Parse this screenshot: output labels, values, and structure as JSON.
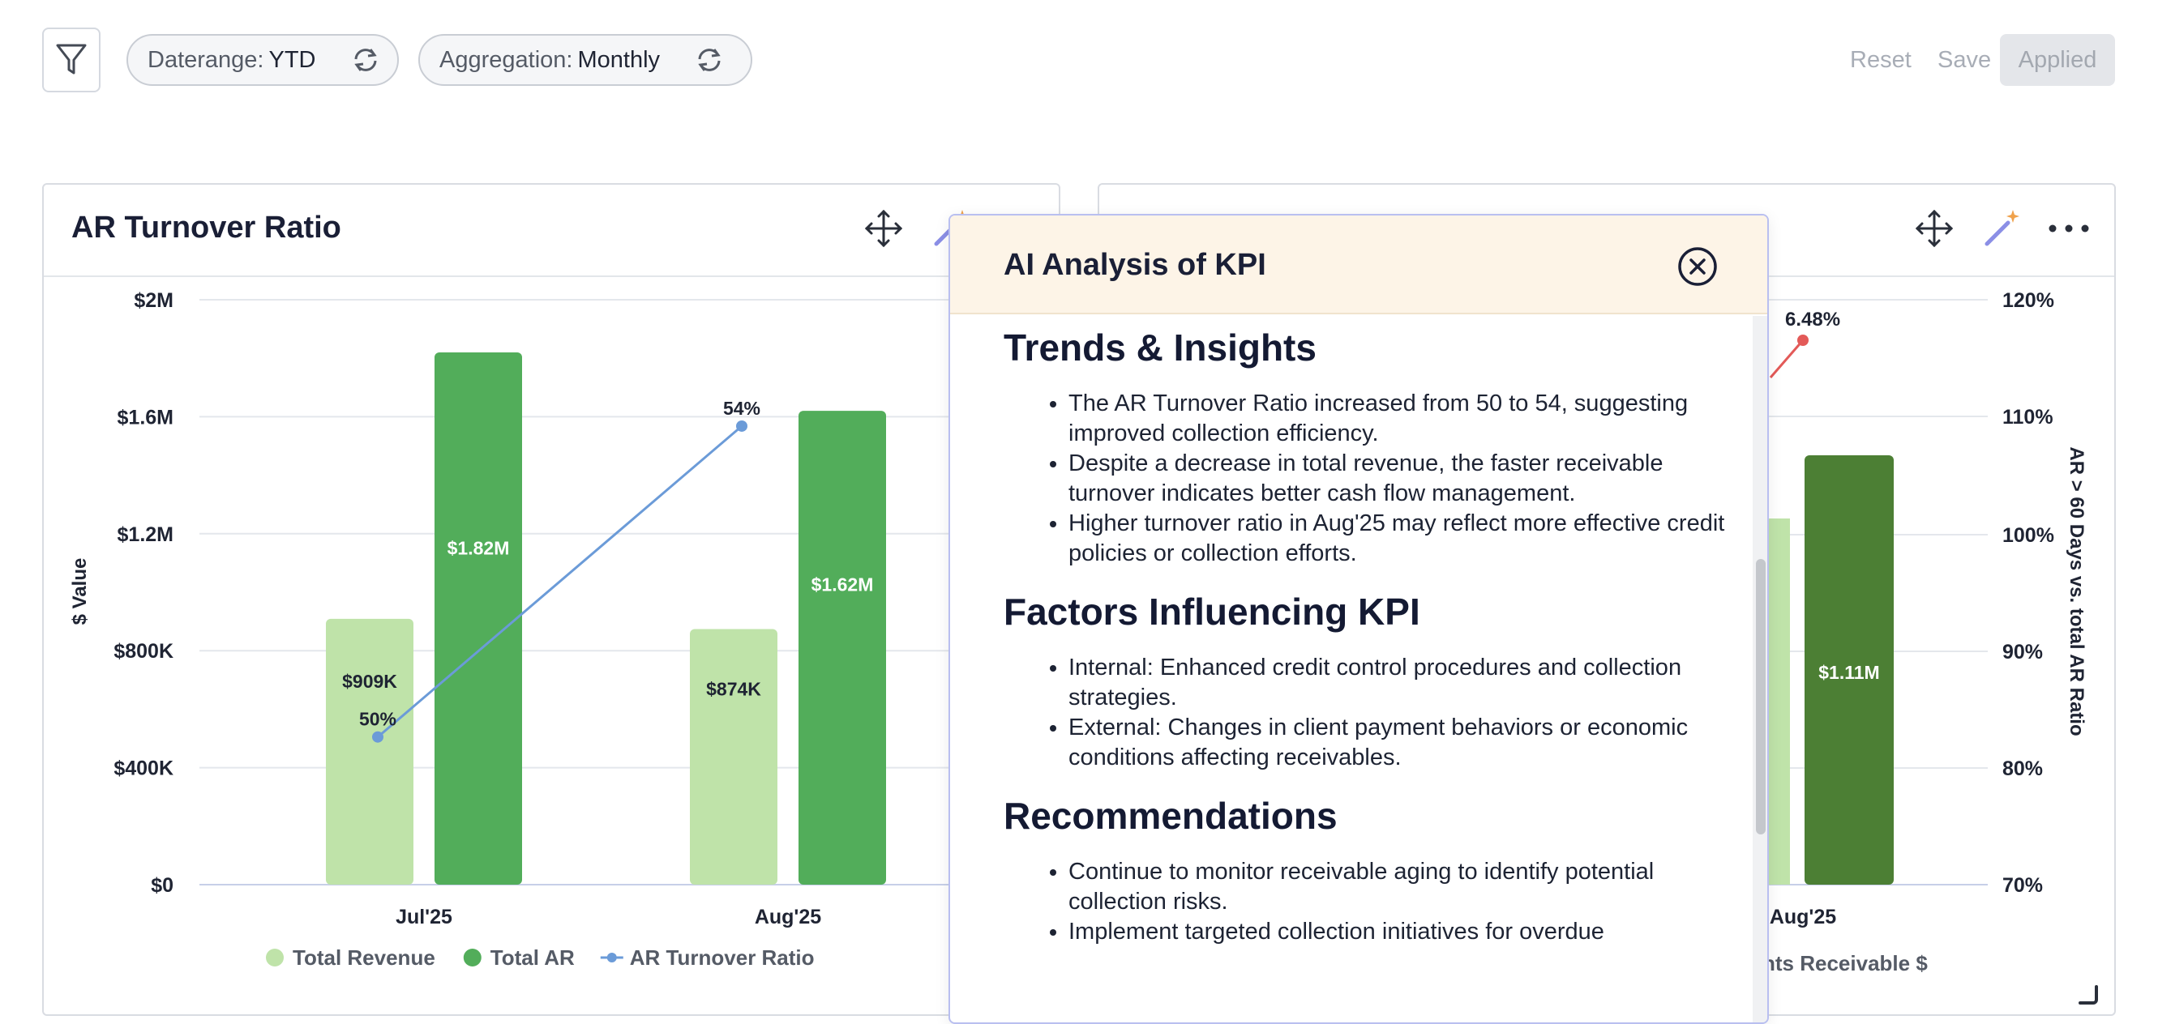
{
  "toolbar": {
    "filter_icon": "filter-icon",
    "daterange": {
      "label": "Daterange:",
      "value": "YTD",
      "icon": "refresh-icon"
    },
    "aggregation": {
      "label": "Aggregation:",
      "value": "Monthly",
      "icon": "refresh-icon"
    },
    "reset_label": "Reset",
    "save_label": "Save",
    "applied_label": "Applied"
  },
  "left_card": {
    "title": "AR Turnover Ratio",
    "icons": [
      "move-icon",
      "magic-wand-icon"
    ]
  },
  "right_card": {
    "icons": [
      "move-icon",
      "magic-wand-icon",
      "more-icon",
      "resize-handle-icon"
    ],
    "partial_legend": "nts Receivable $",
    "partial_x_label": "Aug'25",
    "partial_point_label": "6.48%",
    "partial_bar_label": "$1.11M",
    "right_axis_label": "AR > 60 Days vs. total AR Ratio",
    "right_ticks": [
      "120%",
      "110%",
      "100%",
      "90%",
      "80%",
      "70%"
    ]
  },
  "chart_data": {
    "type": "bar",
    "ylabel": "$ Value",
    "ylim": [
      0,
      2000000
    ],
    "y_ticks": [
      "$2M",
      "$1.6M",
      "$1.2M",
      "$800K",
      "$400K",
      "$0"
    ],
    "categories": [
      "Jul'25",
      "Aug'25"
    ],
    "series": [
      {
        "name": "Total Revenue",
        "kind": "bar",
        "color": "#bfe3a9",
        "values": [
          909000,
          874000
        ],
        "labels": [
          "$909K",
          "$874K"
        ]
      },
      {
        "name": "Total AR",
        "kind": "bar",
        "color": "#52ad5a",
        "values": [
          1820000,
          1620000
        ],
        "labels": [
          "$1.82M",
          "$1.62M"
        ]
      },
      {
        "name": "AR Turnover Ratio",
        "kind": "line",
        "color": "#6b9bd8",
        "values": [
          50,
          54
        ],
        "labels": [
          "50%",
          "54%"
        ]
      }
    ],
    "legend": "bottom"
  },
  "popup": {
    "title": "AI Analysis of KPI",
    "close_icon": "close-circle-icon",
    "sections": [
      {
        "heading": "Trends & Insights",
        "items": [
          "The AR Turnover Ratio increased from 50 to 54, suggesting improved collection efficiency.",
          "Despite a decrease in total revenue, the faster receivable turnover indicates better cash flow management.",
          "Higher turnover ratio in Aug'25 may reflect more effective credit policies or collection efforts."
        ]
      },
      {
        "heading": "Factors Influencing KPI",
        "items": [
          "Internal: Enhanced credit control procedures and collection strategies.",
          "External: Changes in client payment behaviors or economic conditions affecting receivables."
        ]
      },
      {
        "heading": "Recommendations",
        "items": [
          "Continue to monitor receivable aging to identify potential collection risks.",
          "Implement targeted collection initiatives for overdue"
        ]
      }
    ]
  }
}
